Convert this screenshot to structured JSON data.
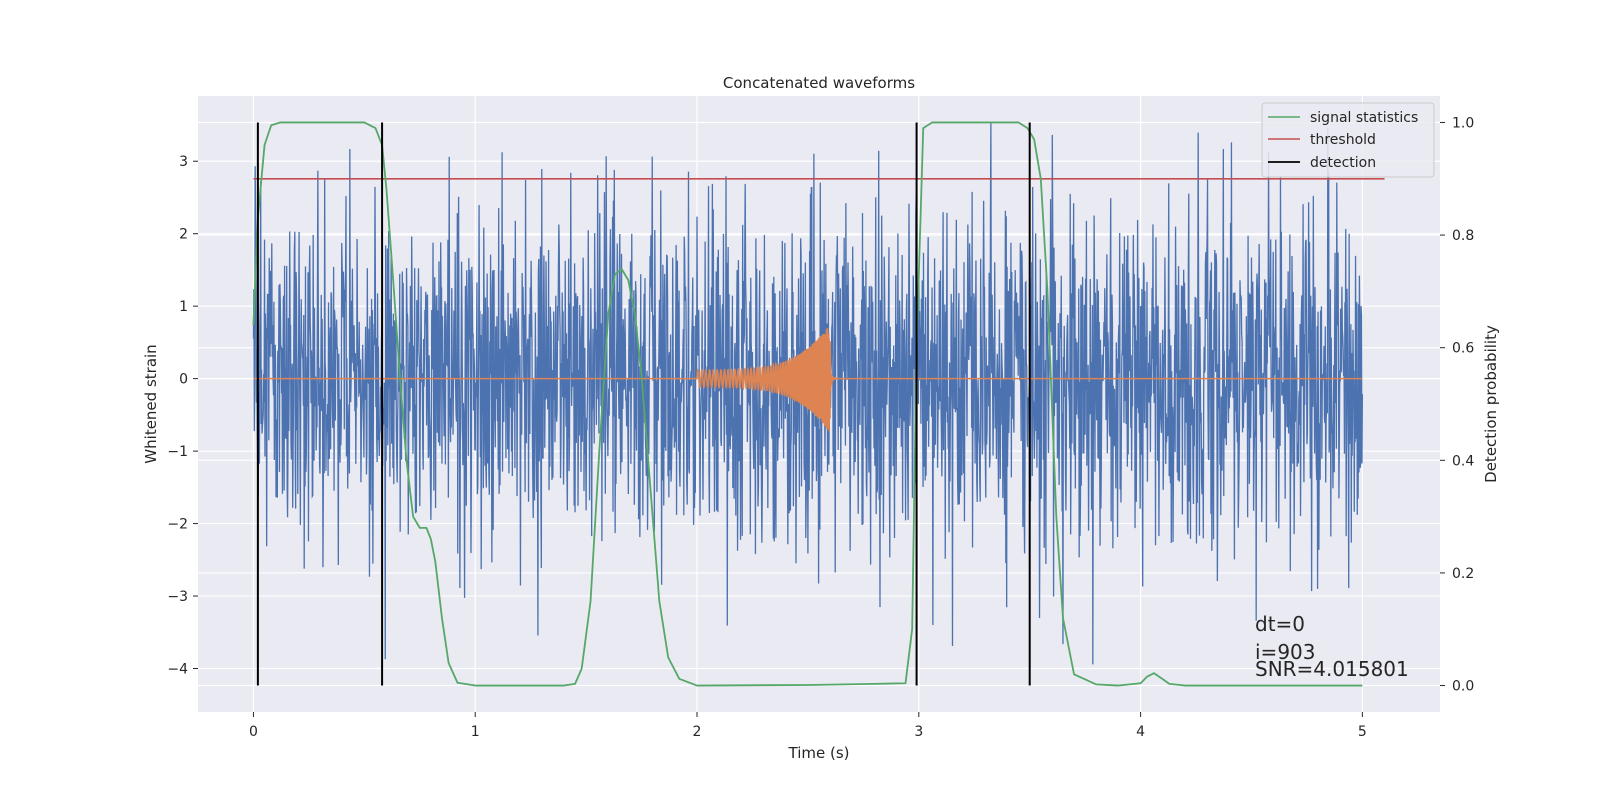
{
  "chart_data": {
    "type": "line",
    "title": "Concatenated waveforms",
    "xlabel": "Time (s)",
    "ylabel": "Whitened strain",
    "ylabel_right": "Detection probability",
    "xlim": [
      -0.25,
      5.35
    ],
    "ylim": [
      -4.6,
      3.9
    ],
    "ylim_right": [
      -0.047,
      1.047
    ],
    "xticks": [
      "0",
      "1",
      "2",
      "3",
      "4",
      "5"
    ],
    "xtick_values": [
      0,
      1,
      2,
      3,
      4,
      5
    ],
    "yticks": [
      "−4",
      "−3",
      "−2",
      "−1",
      "0",
      "1",
      "2",
      "3"
    ],
    "ytick_values": [
      -4,
      -3,
      -2,
      -1,
      0,
      1,
      2,
      3
    ],
    "yticks_right": [
      "0.0",
      "0.2",
      "0.4",
      "0.6",
      "0.8",
      "1.0"
    ],
    "ytick_values_right": [
      0,
      0.2,
      0.4,
      0.6,
      0.8,
      1.0
    ],
    "grid": true,
    "legend_position": "top-right",
    "colors": {
      "background": "#eaeaf2",
      "grid": "#ffffff",
      "noise": "#4c72b0",
      "injection": "#dd8452",
      "signal_statistics": "#55a868",
      "threshold": "#c44e52",
      "detection": "#000000"
    },
    "noise_series": {
      "x_range": [
        0,
        5
      ],
      "amplitude_range": [
        -4.0,
        3.55
      ]
    },
    "injection_series": {
      "x_range": [
        2.0,
        2.6
      ],
      "peak_amplitude": 0.75
    },
    "signal_statistics": {
      "name": "signal statistics",
      "x": [
        0,
        0.02,
        0.05,
        0.08,
        0.12,
        0.2,
        0.5,
        0.55,
        0.58,
        0.6,
        0.63,
        0.66,
        0.69,
        0.72,
        0.75,
        0.78,
        0.8,
        0.82,
        0.85,
        0.88,
        0.92,
        1.0,
        1.4,
        1.45,
        1.48,
        1.52,
        1.56,
        1.6,
        1.63,
        1.66,
        1.69,
        1.72,
        1.75,
        1.79,
        1.83,
        1.87,
        1.92,
        2.0,
        2.5,
        2.8,
        2.94,
        2.97,
        2.99,
        3.02,
        3.06,
        3.1,
        3.2,
        3.45,
        3.49,
        3.52,
        3.55,
        3.58,
        3.6,
        3.62,
        3.65,
        3.7,
        3.8,
        3.9,
        4.0,
        4.03,
        4.06,
        4.09,
        4.13,
        4.2,
        5.0
      ],
      "y": [
        0.64,
        0.83,
        0.96,
        0.995,
        1.0,
        1.0,
        1.0,
        0.99,
        0.96,
        0.88,
        0.72,
        0.55,
        0.4,
        0.3,
        0.28,
        0.28,
        0.26,
        0.22,
        0.12,
        0.04,
        0.005,
        0.0,
        0.0,
        0.003,
        0.03,
        0.15,
        0.42,
        0.66,
        0.73,
        0.74,
        0.72,
        0.66,
        0.55,
        0.35,
        0.15,
        0.05,
        0.012,
        0.0,
        0.001,
        0.003,
        0.004,
        0.1,
        0.6,
        0.99,
        1.0,
        1.0,
        1.0,
        1.0,
        0.99,
        0.97,
        0.9,
        0.7,
        0.5,
        0.3,
        0.12,
        0.02,
        0.002,
        0.0,
        0.004,
        0.016,
        0.022,
        0.014,
        0.003,
        0.0,
        0.0
      ]
    },
    "threshold": {
      "name": "threshold",
      "value": 0.9,
      "x_range": [
        0,
        5.1
      ]
    },
    "detections": {
      "name": "detection",
      "x": [
        0.02,
        0.58,
        2.99,
        3.5
      ],
      "y_range": [
        0.0,
        1.0
      ]
    },
    "legend": [
      "signal statistics",
      "threshold",
      "detection"
    ],
    "annotations": [
      "dt=0",
      "i=903",
      "SNR=4.015801"
    ]
  }
}
